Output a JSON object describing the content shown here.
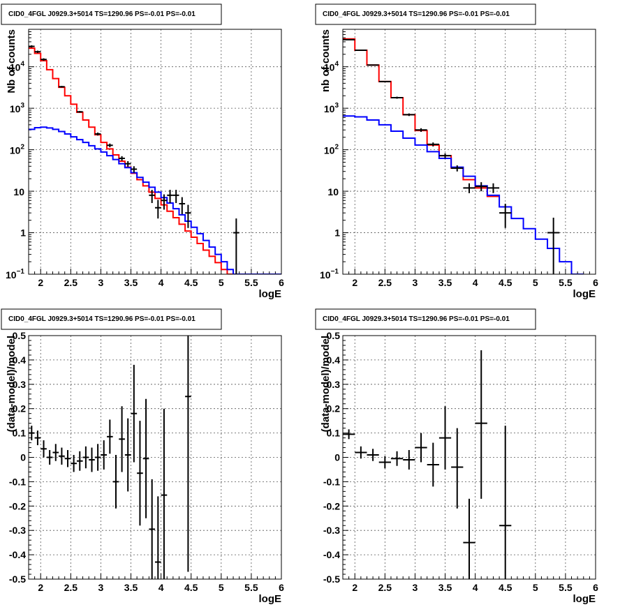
{
  "chart_data": [
    {
      "type": "line",
      "title": "CID0_4FGL J0929.3+5014 TS=1290.96 PS=-0.01 PS=-0.01",
      "xlabel": "logE",
      "ylabel": "Nb of counts",
      "yscale": "log",
      "xlim": [
        1.8,
        6.0
      ],
      "ylim": [
        0.1,
        80000
      ],
      "grid": true,
      "xticks": [
        "2",
        "2.5",
        "3",
        "3.5",
        "4",
        "4.5",
        "5",
        "5.5",
        "6"
      ],
      "yticks": [
        "10⁻¹",
        "1",
        "10",
        "10²",
        "10³",
        "10⁴"
      ],
      "bin_edges": [
        1.8,
        1.9,
        2.0,
        2.1,
        2.2,
        2.3,
        2.4,
        2.5,
        2.6,
        2.7,
        2.8,
        2.9,
        3.0,
        3.1,
        3.2,
        3.3,
        3.4,
        3.5,
        3.6,
        3.7,
        3.8,
        3.9,
        4.0,
        4.1,
        4.2,
        4.3,
        4.4,
        4.5,
        4.6,
        4.7,
        4.8,
        4.9,
        5.0,
        5.1,
        5.2,
        5.3,
        5.4,
        5.5,
        5.6,
        5.7,
        5.8,
        5.9,
        6.0
      ],
      "series": [
        {
          "color": "#ff0000",
          "values": [
            28000,
            21000,
            14000,
            8500,
            5200,
            3200,
            2000,
            1250,
            800,
            520,
            350,
            230,
            150,
            105,
            75,
            53,
            38,
            27,
            19,
            13.5,
            9.5,
            6.7,
            4.7,
            3.3,
            2.3,
            1.6,
            1.1,
            0.78,
            0.55,
            0.38,
            0.27,
            0.19,
            0.13,
            0.093,
            0.07
          ]
        },
        {
          "color": "#0000ff",
          "values": [
            310,
            340,
            350,
            335,
            310,
            275,
            240,
            205,
            175,
            150,
            125,
            105,
            88,
            72,
            58,
            46,
            37,
            28,
            21.5,
            16.5,
            12.5,
            9.5,
            7,
            5.2,
            3.8,
            2.7,
            1.9,
            1.35,
            0.95,
            0.65,
            0.45,
            0.3,
            0.2,
            0.13,
            0.09,
            0.1,
            0.1,
            0.1,
            0.1,
            0.1,
            0.1,
            0.1
          ]
        }
      ],
      "points": [
        {
          "x": 1.85,
          "y": 31000,
          "lo": 29000,
          "hi": 33000,
          "xw": 0.05
        },
        {
          "x": 1.95,
          "y": 23000,
          "lo": 21500,
          "hi": 24500,
          "xw": 0.05
        },
        {
          "x": 2.05,
          "y": 15000,
          "lo": 14000,
          "hi": 16000,
          "xw": 0.05
        },
        {
          "x": 2.35,
          "y": 3300,
          "lo": 3150,
          "hi": 3450,
          "xw": 0.05
        },
        {
          "x": 2.65,
          "y": 820,
          "lo": 780,
          "hi": 860,
          "xw": 0.05
        },
        {
          "x": 2.95,
          "y": 240,
          "lo": 220,
          "hi": 260,
          "xw": 0.05
        },
        {
          "x": 3.15,
          "y": 128,
          "lo": 115,
          "hi": 141,
          "xw": 0.05
        },
        {
          "x": 3.35,
          "y": 62,
          "lo": 54,
          "hi": 70,
          "xw": 0.05
        },
        {
          "x": 3.45,
          "y": 46,
          "lo": 39,
          "hi": 53,
          "xw": 0.05
        },
        {
          "x": 3.55,
          "y": 34,
          "lo": 28,
          "hi": 40,
          "xw": 0.05
        },
        {
          "x": 3.85,
          "y": 8,
          "lo": 5.2,
          "hi": 10.8,
          "xw": 0.05
        },
        {
          "x": 3.95,
          "y": 4,
          "lo": 2.2,
          "hi": 6.2,
          "xw": 0.05
        },
        {
          "x": 4.05,
          "y": 6,
          "lo": 3.6,
          "hi": 8.4,
          "xw": 0.05
        },
        {
          "x": 4.15,
          "y": 8,
          "lo": 5.2,
          "hi": 10.8,
          "xw": 0.05
        },
        {
          "x": 4.25,
          "y": 8,
          "lo": 5.2,
          "hi": 10.8,
          "xw": 0.05
        },
        {
          "x": 4.35,
          "y": 5,
          "lo": 2.8,
          "hi": 7.2,
          "xw": 0.05
        },
        {
          "x": 4.45,
          "y": 3,
          "lo": 1.3,
          "hi": 4.7,
          "xw": 0.05
        },
        {
          "x": 5.25,
          "y": 1,
          "lo": 0.1,
          "hi": 2.2,
          "xw": 0.05
        }
      ]
    },
    {
      "type": "line",
      "title": "CID0_4FGL J0929.3+5014 TS=1290.96 PS=-0.01 PS=-0.01",
      "xlabel": "logE",
      "ylabel": "nb of counts",
      "yscale": "log",
      "xlim": [
        1.8,
        6.0
      ],
      "ylim": [
        0.1,
        80000
      ],
      "grid": true,
      "xticks": [
        "2",
        "2.5",
        "3",
        "3.5",
        "4",
        "4.5",
        "5",
        "5.5",
        "6"
      ],
      "yticks": [
        "10⁻¹",
        "1",
        "10",
        "10²",
        "10³",
        "10⁴"
      ],
      "bin_edges": [
        1.8,
        2.0,
        2.2,
        2.4,
        2.6,
        2.8,
        3.0,
        3.2,
        3.4,
        3.6,
        3.8,
        4.0,
        4.2,
        4.4,
        4.6,
        4.8,
        5.0,
        5.2,
        5.4,
        5.6,
        5.8,
        6.0
      ],
      "series": [
        {
          "color": "#ff0000",
          "values": [
            47000,
            25000,
            11000,
            4400,
            1800,
            700,
            290,
            130,
            72,
            36,
            19,
            12,
            7.5
          ]
        },
        {
          "color": "#0000ff",
          "values": [
            650,
            620,
            520,
            400,
            280,
            190,
            130,
            90,
            62,
            38,
            23,
            13.5,
            8,
            4.2,
            2.2,
            1.25,
            0.7,
            0.42,
            0.2,
            0.1
          ]
        }
      ],
      "points": [
        {
          "x": 1.9,
          "y": 45000,
          "lo": 44000,
          "hi": 46000,
          "xw": 0.1
        },
        {
          "x": 2.1,
          "y": 25000,
          "lo": 24500,
          "hi": 25500,
          "xw": 0.1
        },
        {
          "x": 2.3,
          "y": 11000,
          "lo": 10700,
          "hi": 11300,
          "xw": 0.1
        },
        {
          "x": 2.5,
          "y": 4400,
          "lo": 4250,
          "hi": 4550,
          "xw": 0.1
        },
        {
          "x": 2.7,
          "y": 1800,
          "lo": 1700,
          "hi": 1900,
          "xw": 0.1
        },
        {
          "x": 2.9,
          "y": 700,
          "lo": 650,
          "hi": 750,
          "xw": 0.1
        },
        {
          "x": 3.1,
          "y": 300,
          "lo": 270,
          "hi": 330,
          "xw": 0.1
        },
        {
          "x": 3.3,
          "y": 135,
          "lo": 120,
          "hi": 150,
          "xw": 0.1
        },
        {
          "x": 3.5,
          "y": 72,
          "lo": 62,
          "hi": 82,
          "xw": 0.1
        },
        {
          "x": 3.7,
          "y": 36,
          "lo": 30,
          "hi": 42,
          "xw": 0.1
        },
        {
          "x": 3.9,
          "y": 12,
          "lo": 9,
          "hi": 15.5,
          "xw": 0.1
        },
        {
          "x": 4.1,
          "y": 13,
          "lo": 10,
          "hi": 16.5,
          "xw": 0.1
        },
        {
          "x": 4.3,
          "y": 12,
          "lo": 9,
          "hi": 15.5,
          "xw": 0.1
        },
        {
          "x": 4.5,
          "y": 3,
          "lo": 1.3,
          "hi": 5,
          "xw": 0.1
        },
        {
          "x": 5.3,
          "y": 1,
          "lo": 0.1,
          "hi": 2.3,
          "xw": 0.1
        }
      ]
    },
    {
      "type": "scatter",
      "title": "CID0_4FGL J0929.3+5014 TS=1290.96 PS=-0.01 PS=-0.01",
      "xlabel": "logE",
      "ylabel": "(data-model)/model",
      "xlim": [
        1.8,
        6.0
      ],
      "ylim": [
        -0.5,
        0.5
      ],
      "grid": true,
      "xticks": [
        "2",
        "2.5",
        "3",
        "3.5",
        "4",
        "4.5",
        "5",
        "5.5",
        "6"
      ],
      "yticks": [
        "-0.5",
        "-0.4",
        "-0.3",
        "-0.2",
        "-0.1",
        "0",
        "0.1",
        "0.2",
        "0.3",
        "0.4",
        "0.5"
      ],
      "points": [
        {
          "x": 1.85,
          "y": 0.1,
          "lo": 0.07,
          "hi": 0.13,
          "xw": 0.05
        },
        {
          "x": 1.95,
          "y": 0.08,
          "lo": 0.05,
          "hi": 0.11,
          "xw": 0.05
        },
        {
          "x": 2.05,
          "y": 0.035,
          "lo": 0.0,
          "hi": 0.07,
          "xw": 0.05
        },
        {
          "x": 2.15,
          "y": 0.0,
          "lo": -0.03,
          "hi": 0.03,
          "xw": 0.05
        },
        {
          "x": 2.25,
          "y": 0.02,
          "lo": -0.015,
          "hi": 0.055,
          "xw": 0.05
        },
        {
          "x": 2.35,
          "y": 0.005,
          "lo": -0.03,
          "hi": 0.04,
          "xw": 0.05
        },
        {
          "x": 2.45,
          "y": -0.005,
          "lo": -0.04,
          "hi": 0.03,
          "xw": 0.05
        },
        {
          "x": 2.55,
          "y": -0.025,
          "lo": -0.06,
          "hi": 0.01,
          "xw": 0.05
        },
        {
          "x": 2.65,
          "y": -0.015,
          "lo": -0.055,
          "hi": 0.025,
          "xw": 0.05
        },
        {
          "x": 2.75,
          "y": 0.0,
          "lo": -0.045,
          "hi": 0.045,
          "xw": 0.05
        },
        {
          "x": 2.85,
          "y": -0.01,
          "lo": -0.06,
          "hi": 0.04,
          "xw": 0.05
        },
        {
          "x": 2.95,
          "y": 0.0,
          "lo": -0.055,
          "hi": 0.055,
          "xw": 0.05
        },
        {
          "x": 3.05,
          "y": 0.01,
          "lo": -0.05,
          "hi": 0.07,
          "xw": 0.05
        },
        {
          "x": 3.15,
          "y": 0.085,
          "lo": 0.015,
          "hi": 0.155,
          "xw": 0.05
        },
        {
          "x": 3.25,
          "y": -0.1,
          "lo": -0.21,
          "hi": 0.01,
          "xw": 0.05
        },
        {
          "x": 3.35,
          "y": 0.075,
          "lo": -0.06,
          "hi": 0.21,
          "xw": 0.05
        },
        {
          "x": 3.45,
          "y": 0.01,
          "lo": -0.14,
          "hi": 0.16,
          "xw": 0.05
        },
        {
          "x": 3.55,
          "y": 0.18,
          "lo": -0.02,
          "hi": 0.38,
          "xw": 0.05
        },
        {
          "x": 3.65,
          "y": -0.065,
          "lo": -0.28,
          "hi": 0.15,
          "xw": 0.05
        },
        {
          "x": 3.75,
          "y": -0.005,
          "lo": -0.25,
          "hi": 0.24,
          "xw": 0.05
        },
        {
          "x": 3.85,
          "y": -0.295,
          "lo": -0.5,
          "hi": -0.09,
          "xw": 0.05
        },
        {
          "x": 3.95,
          "y": -0.43,
          "lo": -0.5,
          "hi": -0.16,
          "xw": 0.05
        },
        {
          "x": 4.05,
          "y": -0.155,
          "lo": -0.5,
          "hi": 0.2,
          "xw": 0.05
        },
        {
          "x": 4.45,
          "y": 0.25,
          "lo": -0.47,
          "hi": 0.5,
          "xw": 0.05
        }
      ]
    },
    {
      "type": "scatter",
      "title": "CID0_4FGL J0929.3+5014 TS=1290.96 PS=-0.01 PS=-0.01",
      "xlabel": "logE",
      "ylabel": "(data-model)/model",
      "xlim": [
        1.8,
        6.0
      ],
      "ylim": [
        -0.5,
        0.5
      ],
      "grid": true,
      "xticks": [
        "2",
        "2.5",
        "3",
        "3.5",
        "4",
        "4.5",
        "5",
        "5.5",
        "6"
      ],
      "yticks": [
        "-0.5",
        "-0.4",
        "-0.3",
        "-0.2",
        "-0.1",
        "0",
        "0.1",
        "0.2",
        "0.3",
        "0.4",
        "0.5"
      ],
      "points": [
        {
          "x": 1.9,
          "y": 0.095,
          "lo": 0.075,
          "hi": 0.115,
          "xw": 0.1
        },
        {
          "x": 2.1,
          "y": 0.02,
          "lo": -0.005,
          "hi": 0.045,
          "xw": 0.1
        },
        {
          "x": 2.3,
          "y": 0.01,
          "lo": -0.015,
          "hi": 0.035,
          "xw": 0.1
        },
        {
          "x": 2.5,
          "y": -0.02,
          "lo": -0.045,
          "hi": 0.005,
          "xw": 0.1
        },
        {
          "x": 2.7,
          "y": -0.005,
          "lo": -0.035,
          "hi": 0.025,
          "xw": 0.1
        },
        {
          "x": 2.9,
          "y": -0.01,
          "lo": -0.05,
          "hi": 0.03,
          "xw": 0.1
        },
        {
          "x": 3.1,
          "y": 0.04,
          "lo": -0.02,
          "hi": 0.1,
          "xw": 0.1
        },
        {
          "x": 3.3,
          "y": -0.03,
          "lo": -0.12,
          "hi": 0.06,
          "xw": 0.1
        },
        {
          "x": 3.5,
          "y": 0.08,
          "lo": -0.05,
          "hi": 0.21,
          "xw": 0.1
        },
        {
          "x": 3.7,
          "y": -0.04,
          "lo": -0.21,
          "hi": 0.12,
          "xw": 0.1
        },
        {
          "x": 3.9,
          "y": -0.35,
          "lo": -0.5,
          "hi": -0.17,
          "xw": 0.1
        },
        {
          "x": 4.1,
          "y": 0.14,
          "lo": -0.17,
          "hi": 0.44,
          "xw": 0.1
        },
        {
          "x": 4.5,
          "y": -0.28,
          "lo": -0.5,
          "hi": 0.13,
          "xw": 0.1
        }
      ]
    }
  ]
}
